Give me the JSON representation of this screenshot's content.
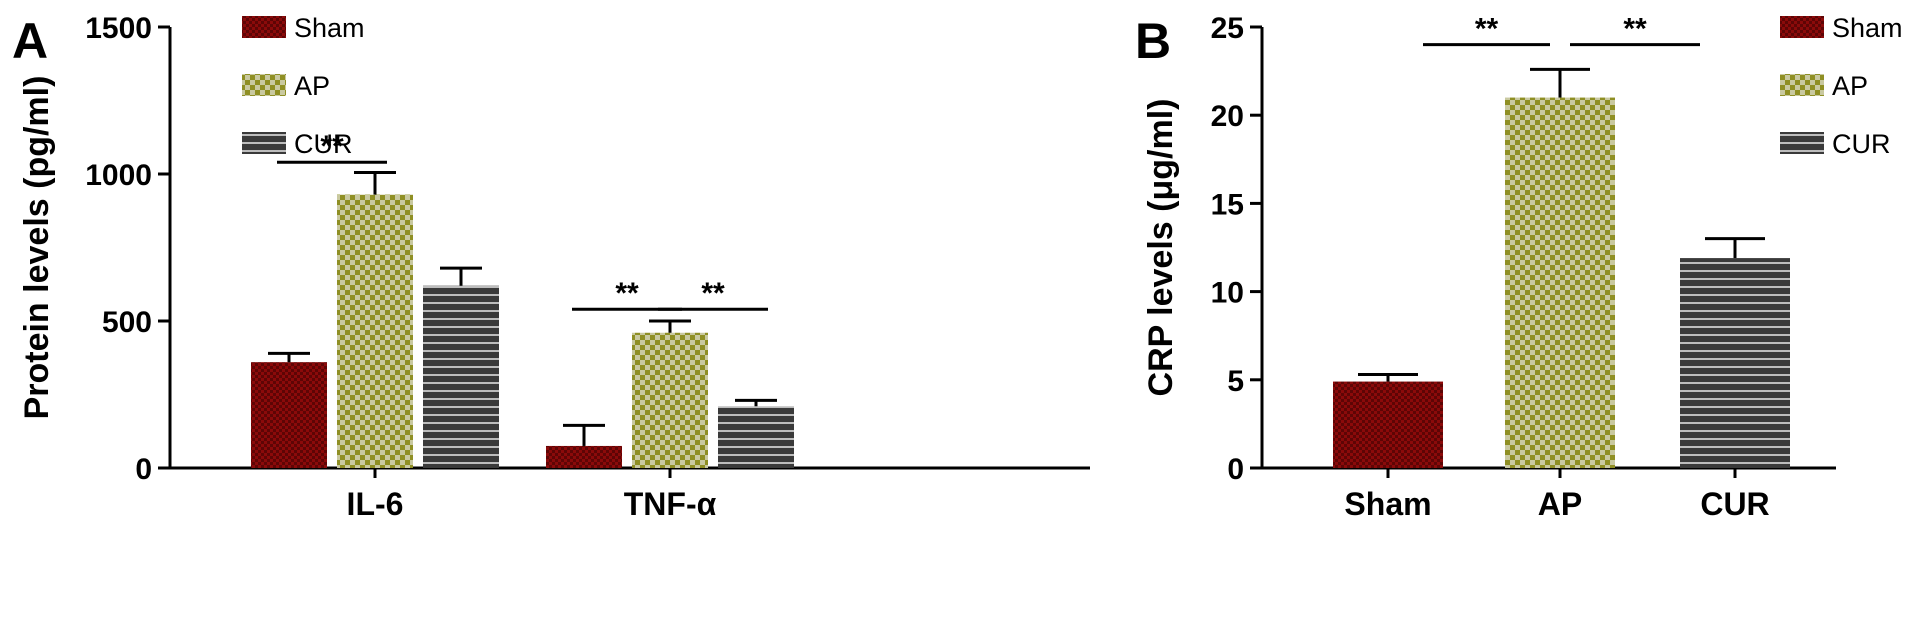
{
  "colors": {
    "sham": "#8b0a0a",
    "ap_fill": "#8f8f24",
    "ap_check": "#c9c9a0",
    "cur": "#3a3a3a",
    "cur_stripe": "#bdbdbd"
  },
  "chart_data": [
    {
      "panel": "A",
      "type": "bar",
      "ylabel": "Protein levels (pg/ml)",
      "ylim": [
        0,
        1500
      ],
      "yticks": [
        "0",
        "500",
        "1000",
        "1500"
      ],
      "categories": [
        "IL-6",
        "TNF-α"
      ],
      "legend": {
        "placement": "top-left",
        "entries": [
          "Sham",
          "AP",
          "CUR"
        ]
      },
      "series": [
        {
          "name": "Sham",
          "values": [
            360,
            75
          ],
          "errors": [
            30,
            70
          ],
          "pattern": "sham"
        },
        {
          "name": "AP",
          "values": [
            930,
            460
          ],
          "errors": [
            75,
            40
          ],
          "pattern": "ap"
        },
        {
          "name": "CUR",
          "values": [
            620,
            210
          ],
          "errors": [
            60,
            20
          ],
          "pattern": "cur"
        }
      ],
      "significance": [
        {
          "label": "**",
          "category": 0,
          "from": 0,
          "to": 1,
          "level": 1040
        },
        {
          "label": "**",
          "category": 1,
          "from": 0,
          "to": 1,
          "level": 540
        },
        {
          "label": "**",
          "category": 1,
          "from": 1,
          "to": 2,
          "level": 540
        }
      ]
    },
    {
      "panel": "B",
      "type": "bar",
      "ylabel": "CRP levels (μg/ml)",
      "ylim": [
        0,
        25
      ],
      "yticks": [
        "0",
        "5",
        "10",
        "15",
        "20",
        "25"
      ],
      "categories": [
        "Sham",
        "AP",
        "CUR"
      ],
      "legend": {
        "placement": "top-right",
        "entries": [
          "Sham",
          "AP",
          "CUR"
        ]
      },
      "series": [
        {
          "name": "",
          "values": [
            4.9,
            21.0,
            11.9
          ],
          "errors": [
            0.4,
            1.6,
            1.1
          ],
          "patterns": [
            "sham",
            "ap",
            "cur"
          ]
        }
      ],
      "significance": [
        {
          "label": "**",
          "from": 0,
          "to": 1,
          "level": 24.0
        },
        {
          "label": "**",
          "from": 1,
          "to": 2,
          "level": 24.0
        }
      ]
    }
  ]
}
